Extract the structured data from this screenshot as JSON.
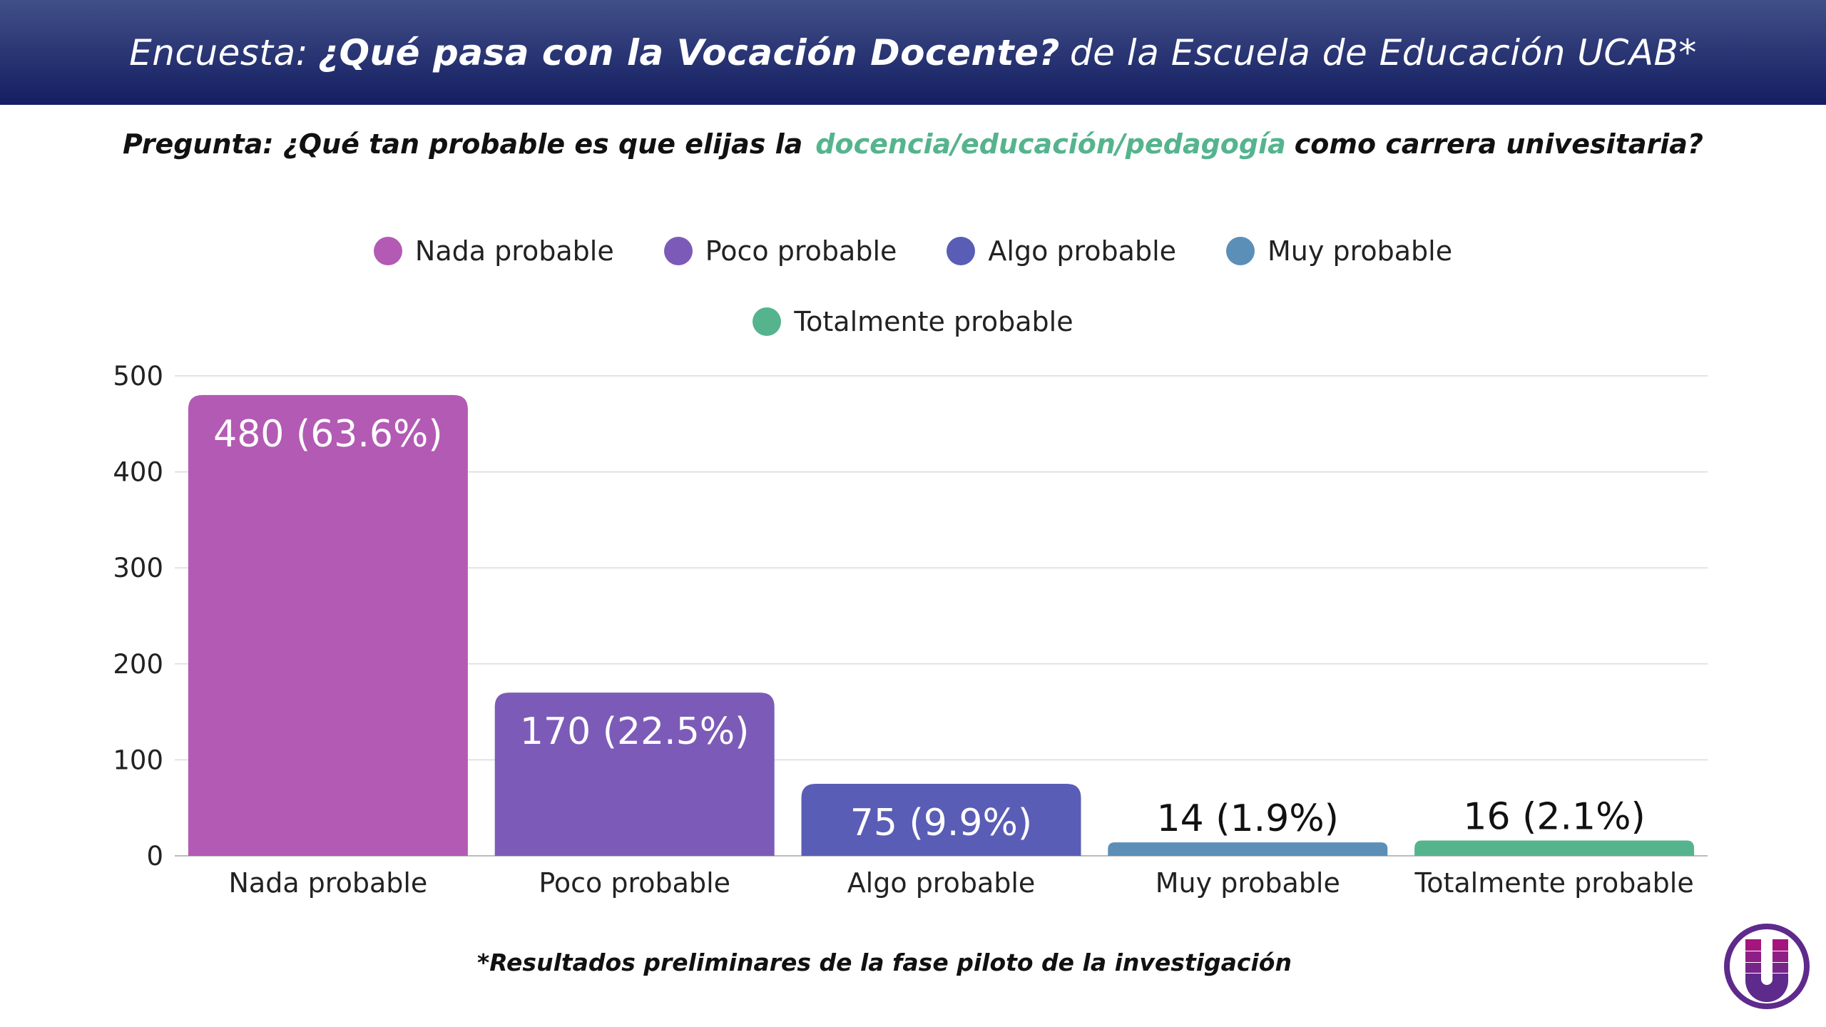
{
  "header": {
    "prefix": "Encuesta:",
    "title": "¿Qué pasa con la Vocación Docente?",
    "suffix": "de la Escuela de Educación UCAB*"
  },
  "question": {
    "prefix": "Pregunta: ¿Qué tan probable es que elijas la",
    "highlight": "docencia/educación/pedagogía",
    "suffix": "como carrera univesitaria?",
    "highlight_color": "#55b48e"
  },
  "footer": {
    "note": "*Resultados preliminares de la fase piloto de la investigación"
  },
  "logo": {
    "letter": "U",
    "color": "#5e2a8c"
  },
  "chart_data": {
    "type": "bar",
    "categories": [
      "Nada probable",
      "Poco probable",
      "Algo probable",
      "Muy probable",
      "Totalmente probable"
    ],
    "values": [
      480,
      170,
      75,
      14,
      16
    ],
    "data_labels": [
      "480 (63.6%)",
      "170 (22.5%)",
      "75 (9.9%)",
      "14 (1.9%)",
      "16 (2.1%)"
    ],
    "colors": [
      "#b35ab5",
      "#7c5bb8",
      "#5a5db5",
      "#5b8fb8",
      "#55b48e"
    ],
    "legend": [
      "Nada probable",
      "Poco probable",
      "Algo probable",
      "Muy probable",
      "Totalmente probable"
    ],
    "legend_position": "top",
    "ylim": [
      0,
      500
    ],
    "yticks": [
      0,
      100,
      200,
      300,
      400,
      500
    ],
    "grid": true,
    "xlabel": "",
    "ylabel": ""
  }
}
